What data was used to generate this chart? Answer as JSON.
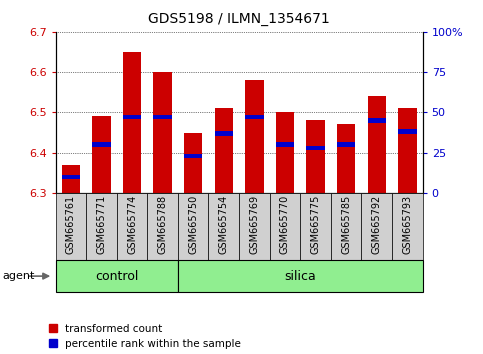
{
  "title": "GDS5198 / ILMN_1354671",
  "samples": [
    "GSM665761",
    "GSM665771",
    "GSM665774",
    "GSM665788",
    "GSM665750",
    "GSM665754",
    "GSM665769",
    "GSM665770",
    "GSM665775",
    "GSM665785",
    "GSM665792",
    "GSM665793"
  ],
  "transformed_counts": [
    6.37,
    6.49,
    6.65,
    6.6,
    6.45,
    6.51,
    6.58,
    6.5,
    6.48,
    6.47,
    6.54,
    6.51
  ],
  "percentile_ranks": [
    10,
    30,
    47,
    47,
    23,
    37,
    47,
    30,
    28,
    30,
    45,
    38
  ],
  "groups": [
    "control",
    "control",
    "control",
    "control",
    "silica",
    "silica",
    "silica",
    "silica",
    "silica",
    "silica",
    "silica",
    "silica"
  ],
  "y_min": 6.3,
  "y_max": 6.7,
  "y_ticks": [
    6.3,
    6.4,
    6.5,
    6.6,
    6.7
  ],
  "right_y_ticks": [
    0,
    25,
    50,
    75,
    100
  ],
  "right_y_labels": [
    "0",
    "25",
    "50",
    "75",
    "100%"
  ],
  "bar_color": "#cc0000",
  "blue_color": "#0000cc",
  "bar_width": 0.6,
  "control_color": "#90ee90",
  "silica_color": "#90ee90",
  "group_label_fontsize": 9,
  "tick_label_fontsize": 7,
  "title_fontsize": 10,
  "legend_fontsize": 7.5,
  "agent_fontsize": 8,
  "n_control": 4,
  "n_silica": 8
}
